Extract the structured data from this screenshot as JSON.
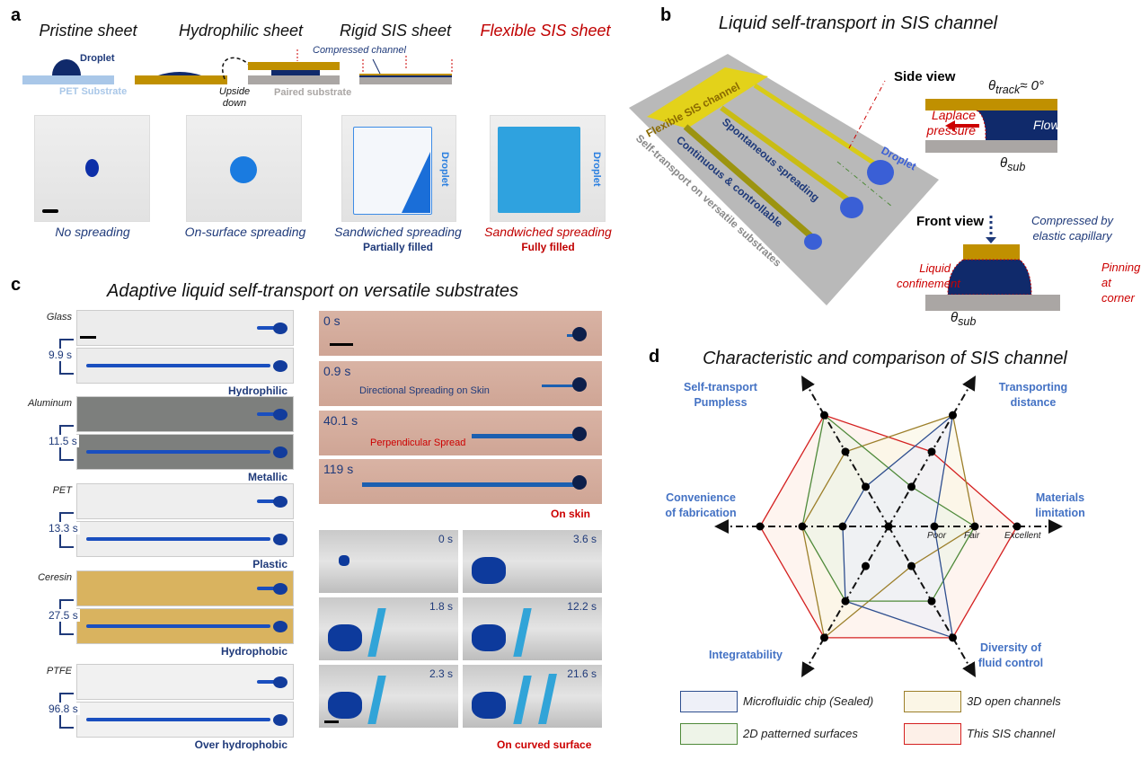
{
  "panel_a": {
    "label": "a",
    "titles": [
      "Pristine sheet",
      "Hydrophilic sheet",
      "Rigid SIS sheet",
      "Flexible SIS sheet"
    ],
    "schematic": {
      "droplet": "Droplet",
      "pet_substrate": "PET Substrate",
      "upside_down": "Upside down",
      "compressed_channel": "Compressed channel",
      "paired_substrate": "Paired substrate"
    },
    "photo_labels": {
      "droplet_rigid": "Droplet",
      "droplet_flexible": "Droplet"
    },
    "captions": [
      "No spreading",
      "On-surface spreading",
      "Sandwiched spreading",
      "Sandwiched spreading"
    ],
    "subcaptions": [
      "Partially filled",
      "Fully filled"
    ]
  },
  "panel_b": {
    "label": "b",
    "title": "Liquid self-transport in SIS channel",
    "render_labels": {
      "channel": "Flexible SIS channel",
      "spontaneous": "Spontaneous spreading",
      "continuous": "Continuous & controllable",
      "substrates": "Self-transport on versatile substrates",
      "droplet": "Droplet"
    },
    "side_view": {
      "title": "Side view",
      "theta_track": "θ",
      "theta_track_sub": "track",
      "theta_track_val": "≈ 0°",
      "laplace": "Laplace",
      "pressure": "pressure",
      "flow": "Flow",
      "theta_sub": "θ",
      "theta_sub_sub": "sub"
    },
    "front_view": {
      "title": "Front view",
      "compressed1": "Compressed by",
      "compressed2": "elastic capillary",
      "liquid1": "Liquid",
      "liquid2": "confinement",
      "pinning1": "Pinning",
      "pinning2": "at corner",
      "theta_sub": "θ",
      "theta_sub_sub": "sub"
    }
  },
  "panel_c": {
    "label": "c",
    "title": "Adaptive liquid self-transport on versatile substrates",
    "substrates": [
      {
        "name": "Glass",
        "time": "9.9 s",
        "class": "Hydrophilic",
        "bg": "#ececec"
      },
      {
        "name": "Aluminum",
        "time": "11.5 s",
        "class": "Metallic",
        "bg": "#7d7f7d"
      },
      {
        "name": "PET",
        "time": "13.3 s",
        "class": "Plastic",
        "bg": "#eeeeee"
      },
      {
        "name": "Ceresin",
        "time": "27.5 s",
        "class": "Hydrophobic",
        "bg": "#d9b35f"
      },
      {
        "name": "PTFE",
        "time": "96.8 s",
        "class": "Over hydrophobic",
        "bg": "#f1f1f1"
      }
    ],
    "skin": {
      "times": [
        "0 s",
        "0.9 s",
        "40.1 s",
        "119 s"
      ],
      "directional": "Directional Spreading on Skin",
      "perpendicular": "Perpendicular Spread",
      "label": "On skin"
    },
    "curved": {
      "times": [
        "0 s",
        "3.6 s",
        "1.8 s",
        "12.2 s",
        "2.3 s",
        "21.6 s"
      ],
      "label": "On curved surface"
    }
  },
  "panel_d": {
    "label": "d",
    "title": "Characteristic and comparison of SIS channel"
  },
  "chart_data": {
    "type": "radar",
    "title": "Characteristic and comparison of SIS channel",
    "axes": [
      "Materials limitation",
      "Transporting distance",
      "Self-transport Pumpless",
      "Convenience of fabrication",
      "Integratability",
      "Diversity of fluid control"
    ],
    "axis_labels": [
      [
        "Materials",
        "limitation"
      ],
      [
        "Transporting",
        "distance"
      ],
      [
        "Self-transport",
        "Pumpless"
      ],
      [
        "Convenience",
        "of fabrication"
      ],
      [
        "Integratability"
      ],
      [
        "Diversity of",
        "fluid control"
      ]
    ],
    "levels": [
      "Poor",
      "Fair",
      "Excellent"
    ],
    "range": [
      0,
      3
    ],
    "legend_position": "bottom",
    "series": [
      {
        "name": "Microfluidic chip (Sealed)",
        "values": [
          1,
          3,
          1,
          1,
          2,
          3
        ],
        "color": "#2f4f8f",
        "fill": "#eef0f8"
      },
      {
        "name": "3D open channels",
        "values": [
          2,
          3,
          2,
          2,
          3,
          1
        ],
        "color": "#9c7f2a",
        "fill": "#fbf6e6"
      },
      {
        "name": "2D patterned surfaces",
        "values": [
          2,
          1,
          3,
          2,
          2,
          2
        ],
        "color": "#4f8a3a",
        "fill": "#eef4e8"
      },
      {
        "name": "This SIS channel",
        "values": [
          3,
          2,
          3,
          3,
          3,
          3
        ],
        "color": "#d42020",
        "fill": "#fdf0e8"
      }
    ]
  }
}
